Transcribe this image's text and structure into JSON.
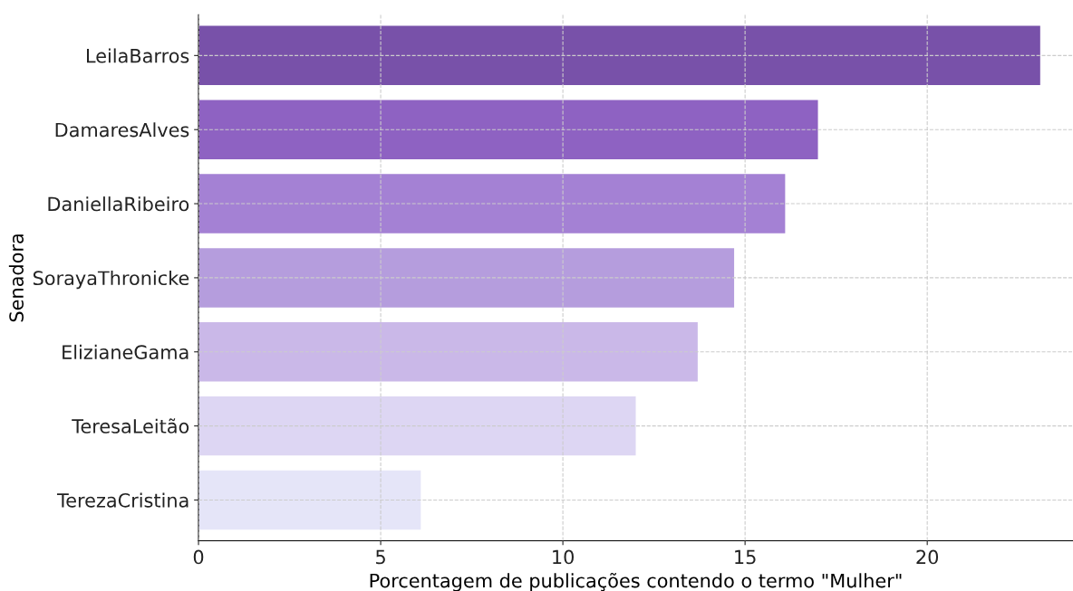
{
  "chart_data": {
    "type": "bar",
    "orientation": "horizontal",
    "xlabel": "Porcentagem de publicações contendo o termo \"Mulher\"",
    "ylabel": "Senadora",
    "categories": [
      "LeilaBarros",
      "DamaresAlves",
      "DaniellaRibeiro",
      "SorayaThronicke",
      "ElizianeGama",
      "TeresaLeitão",
      "TerezaCristina"
    ],
    "values": [
      23.1,
      17.0,
      16.1,
      14.7,
      13.7,
      12.0,
      6.1
    ],
    "colors": [
      "#7851a9",
      "#8e62c2",
      "#a481d4",
      "#b59ddd",
      "#cab8e8",
      "#ddd6f3",
      "#e5e5f8"
    ],
    "xlim": [
      0,
      24
    ],
    "xticks": [
      0,
      5,
      10,
      15,
      20
    ],
    "grid": true
  }
}
